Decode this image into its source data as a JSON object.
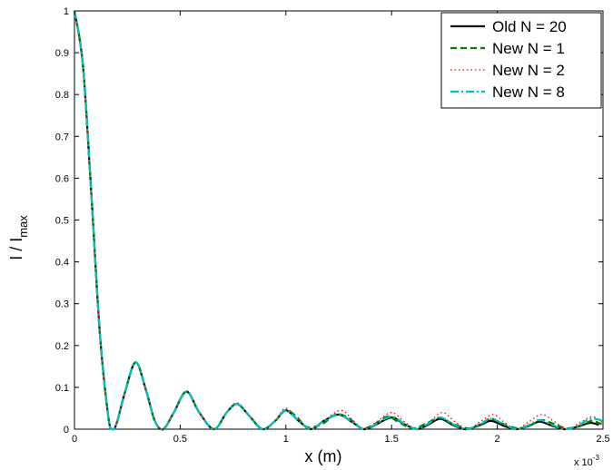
{
  "chart_data": {
    "type": "line",
    "xlabel": "x  (m)",
    "ylabel_main": "I / I",
    "ylabel_sub": "max",
    "x_exponent_label": "x 10",
    "x_exponent_power": "-3",
    "xlim": [
      0,
      2.5
    ],
    "ylim": [
      0,
      1
    ],
    "x_ticks": [
      "0",
      "0.5",
      "1",
      "1.5",
      "2",
      "2.5"
    ],
    "y_ticks": [
      "0",
      "0.1",
      "0.2",
      "0.3",
      "0.4",
      "0.5",
      "0.6",
      "0.7",
      "0.8",
      "0.9",
      "1"
    ],
    "grid": false,
    "legend_position": "top-right",
    "series": [
      {
        "name": "Old N = 20",
        "color": "#000000",
        "style": "solid",
        "x": [
          0,
          0.04,
          0.08,
          0.12,
          0.16,
          0.18,
          0.2,
          0.24,
          0.29,
          0.34,
          0.38,
          0.42,
          0.47,
          0.53,
          0.59,
          0.66,
          0.72,
          0.77,
          0.83,
          0.89,
          0.95,
          1.0,
          1.06,
          1.12,
          1.18,
          1.25,
          1.31,
          1.37,
          1.43,
          1.5,
          1.56,
          1.62,
          1.67,
          1.73,
          1.79,
          1.85,
          1.92,
          1.97,
          2.03,
          2.09,
          2.15,
          2.2,
          2.26,
          2.32,
          2.38,
          2.44,
          2.48
        ],
        "y": [
          1.0,
          0.87,
          0.56,
          0.23,
          0.03,
          0.0,
          0.015,
          0.09,
          0.16,
          0.09,
          0.02,
          0.0,
          0.04,
          0.09,
          0.04,
          0.0,
          0.04,
          0.06,
          0.03,
          0.0,
          0.02,
          0.045,
          0.02,
          0.0,
          0.02,
          0.035,
          0.018,
          0.0,
          0.012,
          0.028,
          0.012,
          0.0,
          0.01,
          0.025,
          0.01,
          0.0,
          0.01,
          0.02,
          0.008,
          0.0,
          0.008,
          0.018,
          0.008,
          0.0,
          0.006,
          0.015,
          0.01
        ]
      },
      {
        "name": "New N = 1",
        "color": "#008000",
        "style": "dashed",
        "x": [
          0,
          0.04,
          0.08,
          0.12,
          0.16,
          0.18,
          0.2,
          0.24,
          0.29,
          0.34,
          0.38,
          0.42,
          0.47,
          0.53,
          0.59,
          0.66,
          0.72,
          0.77,
          0.83,
          0.89,
          0.95,
          1.0,
          1.05,
          1.1,
          1.17,
          1.24,
          1.3,
          1.36,
          1.42,
          1.48,
          1.53,
          1.6,
          1.67,
          1.73,
          1.78,
          1.86,
          1.92,
          1.97,
          2.03,
          2.1,
          2.16,
          2.21,
          2.27,
          2.33,
          2.4,
          2.45,
          2.5
        ],
        "y": [
          1.0,
          0.87,
          0.56,
          0.23,
          0.03,
          0.0,
          0.015,
          0.09,
          0.16,
          0.09,
          0.02,
          0.0,
          0.04,
          0.09,
          0.04,
          0.0,
          0.04,
          0.06,
          0.03,
          0.0,
          0.02,
          0.045,
          0.03,
          0.005,
          0.012,
          0.036,
          0.025,
          0.002,
          0.012,
          0.03,
          0.018,
          0.002,
          0.015,
          0.028,
          0.015,
          0.002,
          0.012,
          0.025,
          0.012,
          0.002,
          0.01,
          0.022,
          0.012,
          0.002,
          0.01,
          0.02,
          0.01
        ]
      },
      {
        "name": "New N = 2",
        "color": "#ff0000",
        "style": "dotted",
        "x": [
          0,
          0.04,
          0.08,
          0.12,
          0.16,
          0.18,
          0.2,
          0.24,
          0.29,
          0.34,
          0.38,
          0.42,
          0.47,
          0.53,
          0.59,
          0.66,
          0.72,
          0.77,
          0.83,
          0.89,
          0.95,
          1.0,
          1.06,
          1.12,
          1.18,
          1.26,
          1.32,
          1.37,
          1.43,
          1.5,
          1.56,
          1.62,
          1.68,
          1.74,
          1.8,
          1.86,
          1.92,
          1.98,
          2.03,
          2.09,
          2.15,
          2.21,
          2.27,
          2.33,
          2.39,
          2.45,
          2.5
        ],
        "y": [
          1.0,
          0.87,
          0.56,
          0.23,
          0.03,
          0.0,
          0.015,
          0.09,
          0.16,
          0.09,
          0.02,
          0.0,
          0.04,
          0.09,
          0.04,
          0.0,
          0.04,
          0.063,
          0.03,
          0.0,
          0.022,
          0.05,
          0.022,
          0.0,
          0.02,
          0.045,
          0.02,
          0.0,
          0.018,
          0.04,
          0.018,
          0.0,
          0.018,
          0.04,
          0.018,
          0.0,
          0.018,
          0.035,
          0.018,
          0.0,
          0.018,
          0.035,
          0.018,
          0.0,
          0.015,
          0.03,
          0.015
        ]
      },
      {
        "name": "New N = 8",
        "color": "#00bfbf",
        "style": "dashdot",
        "x": [
          0,
          0.04,
          0.08,
          0.12,
          0.16,
          0.18,
          0.2,
          0.24,
          0.29,
          0.34,
          0.38,
          0.42,
          0.47,
          0.53,
          0.59,
          0.66,
          0.72,
          0.77,
          0.83,
          0.89,
          0.95,
          1.0,
          1.06,
          1.12,
          1.18,
          1.25,
          1.31,
          1.37,
          1.43,
          1.5,
          1.56,
          1.62,
          1.67,
          1.73,
          1.79,
          1.85,
          1.92,
          1.97,
          2.03,
          2.09,
          2.15,
          2.2,
          2.26,
          2.32,
          2.38,
          2.44,
          2.5
        ],
        "y": [
          1.0,
          0.87,
          0.56,
          0.23,
          0.03,
          0.0,
          0.015,
          0.09,
          0.16,
          0.09,
          0.02,
          0.0,
          0.04,
          0.09,
          0.04,
          0.0,
          0.04,
          0.06,
          0.03,
          0.0,
          0.02,
          0.045,
          0.02,
          0.0,
          0.02,
          0.035,
          0.018,
          0.0,
          0.013,
          0.03,
          0.013,
          0.0,
          0.012,
          0.028,
          0.012,
          0.0,
          0.012,
          0.025,
          0.012,
          0.0,
          0.01,
          0.022,
          0.01,
          0.0,
          0.008,
          0.025,
          0.02
        ]
      }
    ]
  }
}
